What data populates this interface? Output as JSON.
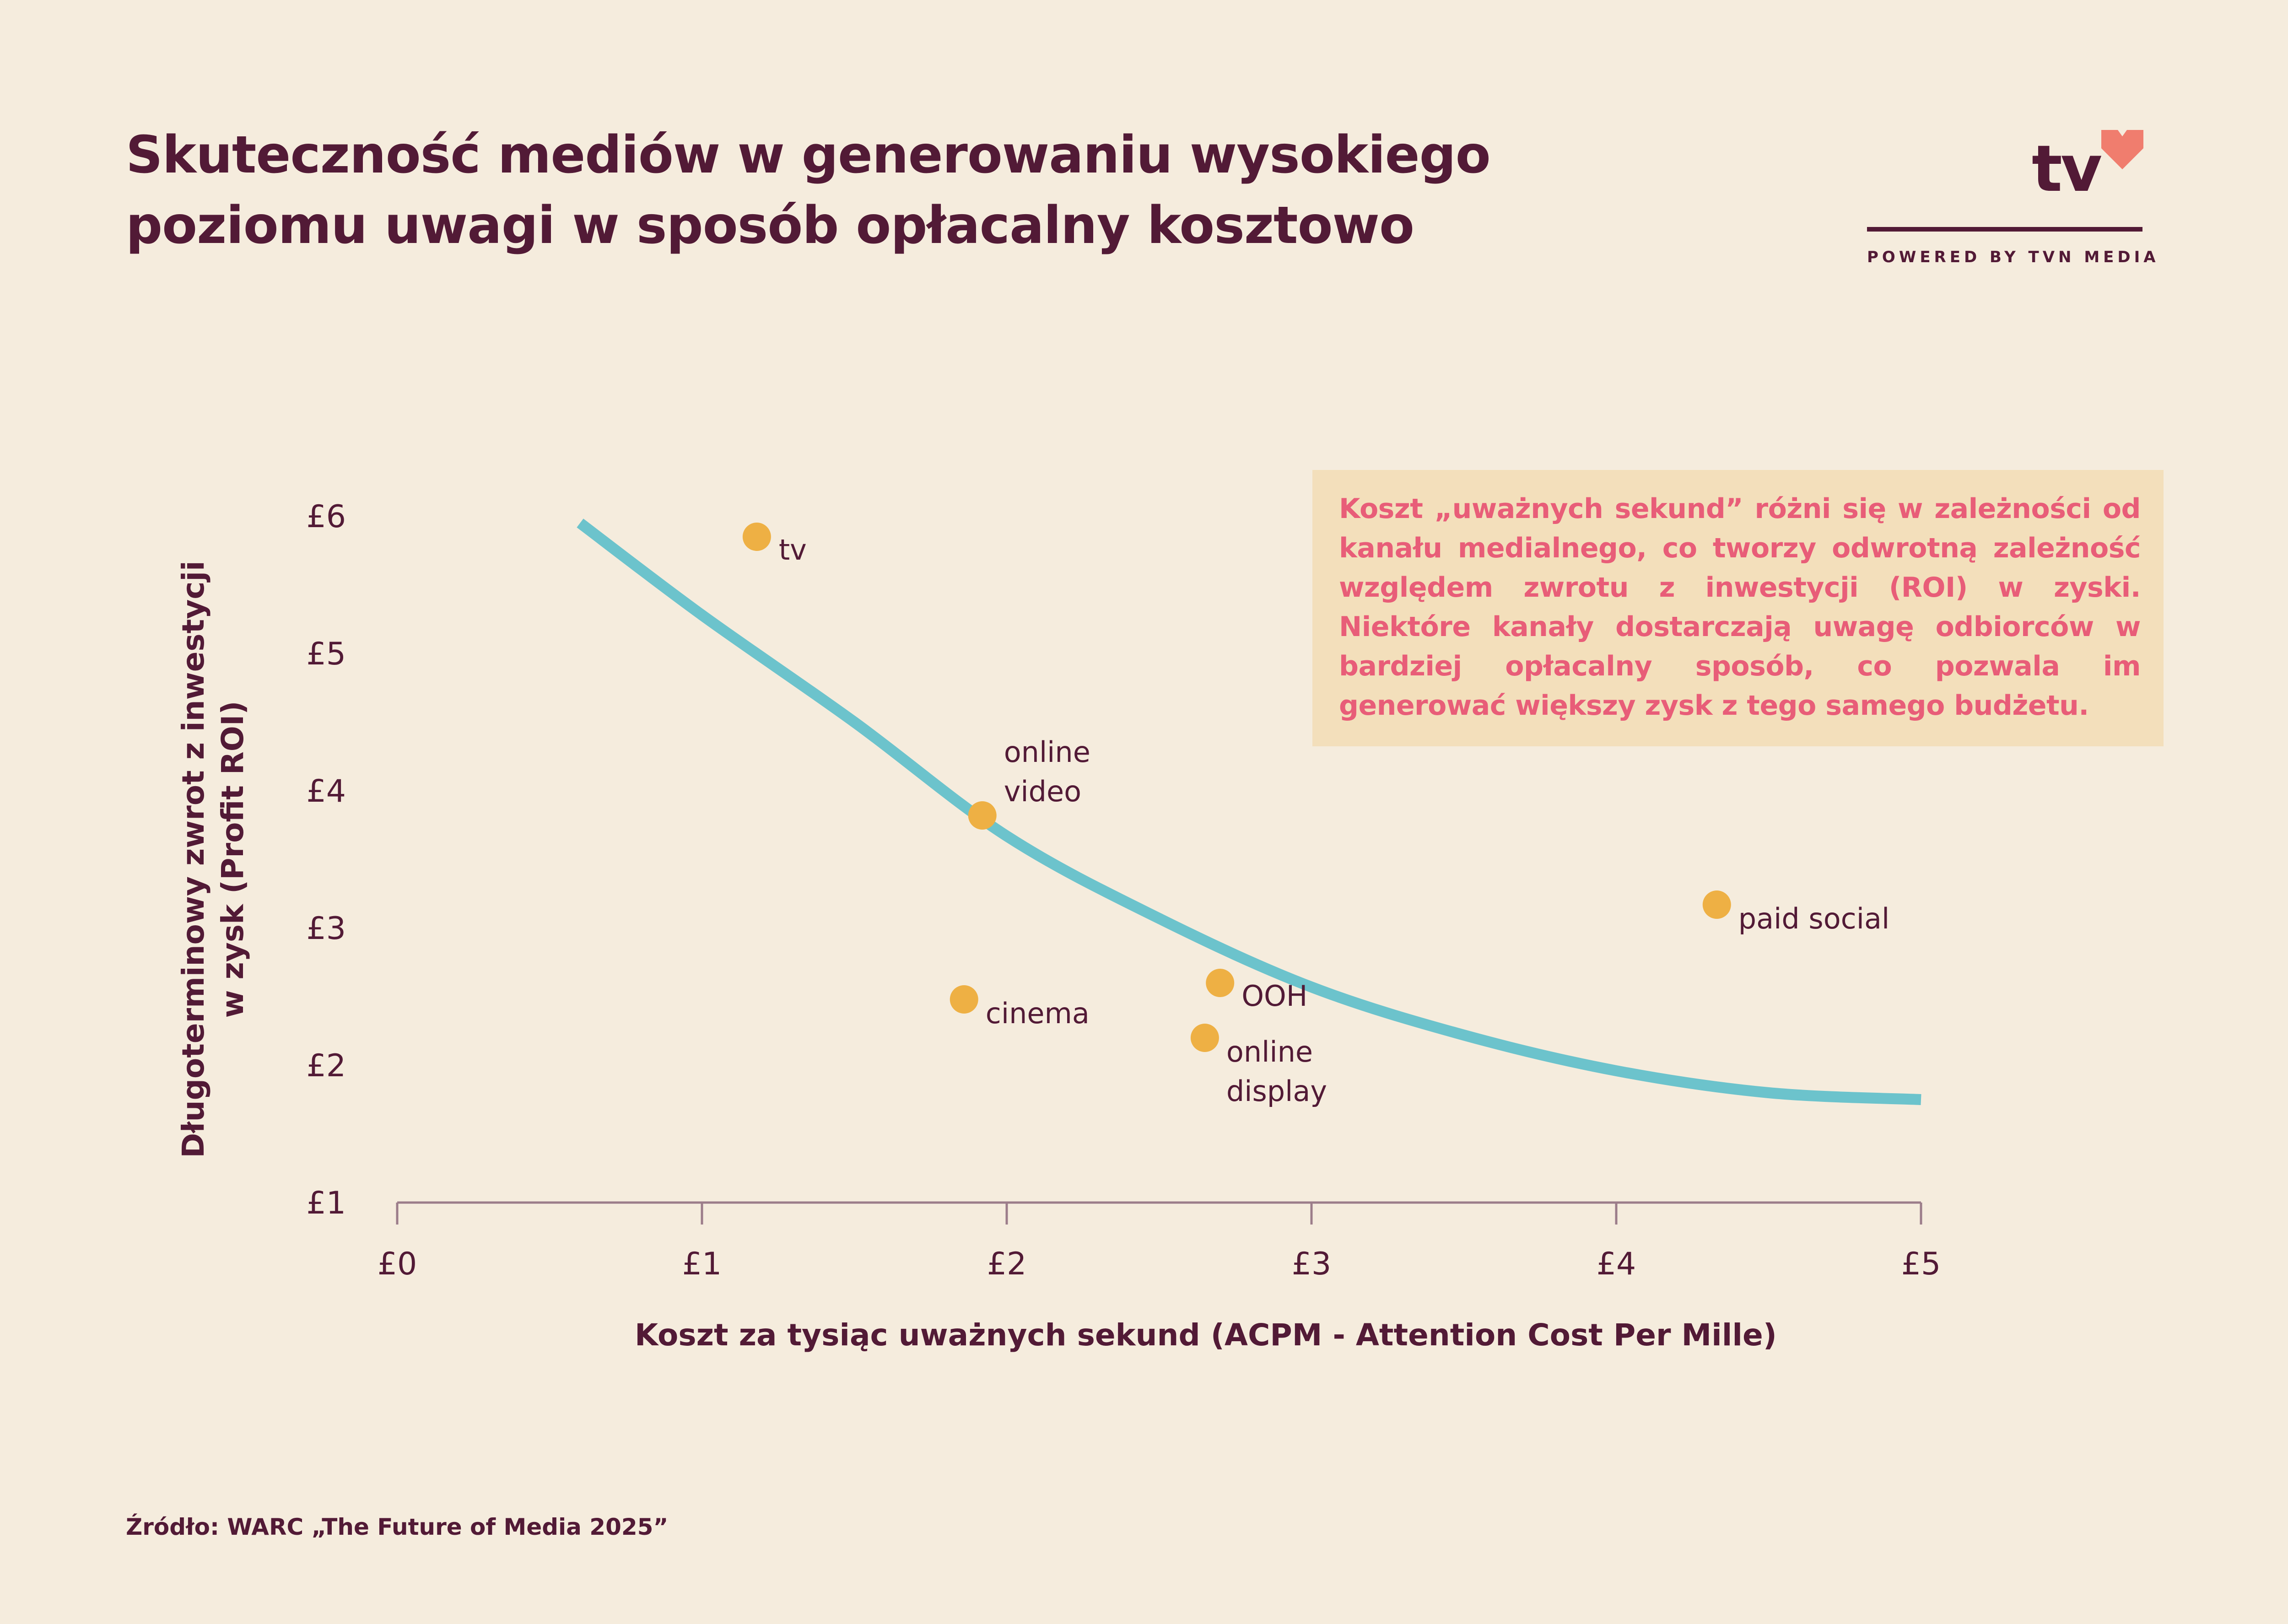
{
  "title": {
    "line1": "Skuteczność mediów w generowaniu wysokiego",
    "line2": "poziomu uwagi w sposób opłacalny kosztowo"
  },
  "logo": {
    "mark": "tv",
    "tagline": "POWERED BY TVN MEDIA",
    "icon": "heart-icon"
  },
  "note": "Koszt „uważnych sekund” różni się w zależności od kanału medialnego, co tworzy odwrotną zależność względem zwrotu z inwestycji (ROI) w zyski. Niektóre kanały dostarczają uwagę odbiorców w bardziej opłacalny sposób, co pozwala im generować większy zysk z tego samego budżetu.",
  "source": "Źródło: WARC „The Future of Media 2025”",
  "colors": {
    "background": "#f5ecdd",
    "text": "#521a36",
    "point": "#eeb044",
    "trend": "#6cc3cc",
    "note_bg": "#f3dfbb",
    "note_text": "#e85d78"
  },
  "chart_data": {
    "type": "scatter",
    "xlabel": "Koszt za tysiąc uważnych sekund (ACPM - Attention Cost Per Mille)",
    "ylabel_lines": [
      "Długoterminowy zwrot z inwestycji",
      "w zysk (Profit ROI)"
    ],
    "xlim": [
      0,
      5
    ],
    "ylim": [
      1,
      6
    ],
    "x_ticks": [
      "£0",
      "£1",
      "£2",
      "£3",
      "£4",
      "£5"
    ],
    "y_ticks": [
      "£1",
      "£2",
      "£3",
      "£4",
      "£5",
      "£6"
    ],
    "grid": false,
    "points": [
      {
        "label": "tv",
        "x": 1.18,
        "y": 5.85
      },
      {
        "label": "online video",
        "x": 1.92,
        "y": 3.82
      },
      {
        "label": "paid social",
        "x": 4.33,
        "y": 3.17
      },
      {
        "label": "OOH",
        "x": 2.7,
        "y": 2.6
      },
      {
        "label": "cinema",
        "x": 1.86,
        "y": 2.48
      },
      {
        "label": "online display",
        "x": 2.65,
        "y": 2.2
      }
    ],
    "trend": [
      {
        "x": 0.6,
        "y": 5.95
      },
      {
        "x": 1.0,
        "y": 5.28
      },
      {
        "x": 1.5,
        "y": 4.5
      },
      {
        "x": 2.0,
        "y": 3.67
      },
      {
        "x": 2.5,
        "y": 3.07
      },
      {
        "x": 3.0,
        "y": 2.57
      },
      {
        "x": 3.5,
        "y": 2.22
      },
      {
        "x": 4.0,
        "y": 1.96
      },
      {
        "x": 4.5,
        "y": 1.8
      },
      {
        "x": 5.0,
        "y": 1.75
      }
    ]
  }
}
